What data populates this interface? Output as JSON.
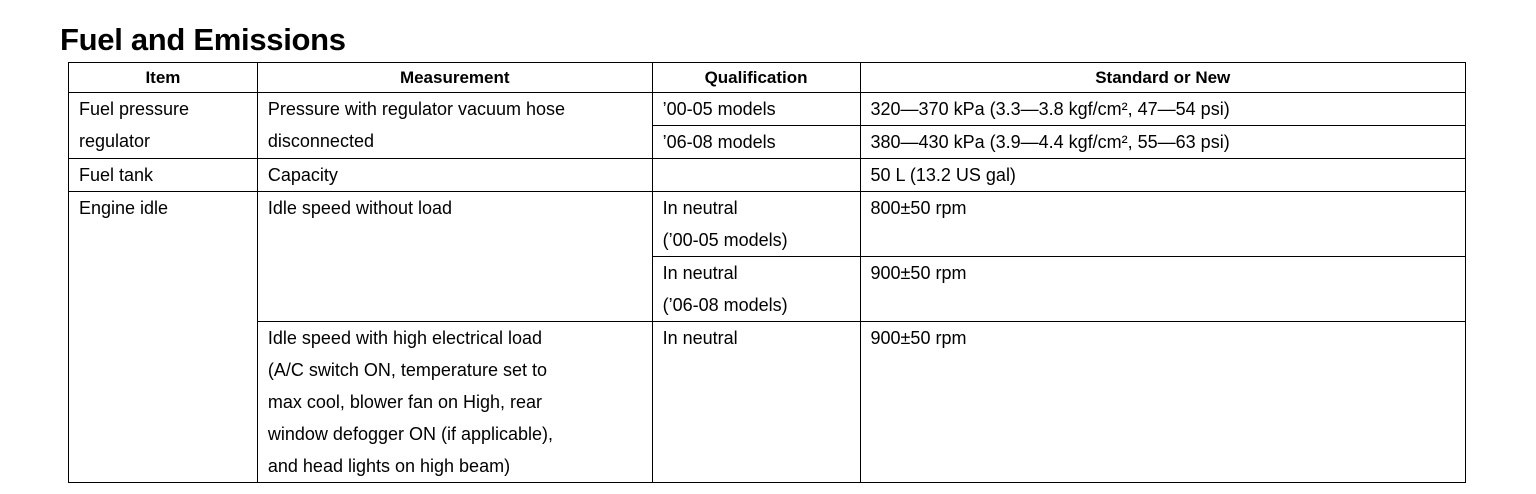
{
  "title": "Fuel and Emissions",
  "headers": [
    "Item",
    "Measurement",
    "Qualification",
    "Standard or New"
  ],
  "rows": {
    "r1": {
      "item": "Fuel pressure\nregulator",
      "measurement": "Pressure with regulator vacuum hose\ndisconnected",
      "qual": "’00-05 models",
      "std": "320—370 kPa (3.3—3.8 kgf/cm², 47—54 psi)"
    },
    "r2": {
      "qual": "’06-08 models",
      "std": "380—430 kPa (3.9—4.4 kgf/cm², 55—63 psi)"
    },
    "r3": {
      "item": "Fuel tank",
      "measurement": "Capacity",
      "qual": "",
      "std": "50 L (13.2 US gal)"
    },
    "r4": {
      "item": "Engine idle",
      "measurement": "Idle speed without load",
      "qual": "In neutral\n(’00-05 models)",
      "std": "800±50 rpm"
    },
    "r5": {
      "qual": "In neutral\n(’06-08 models)",
      "std": "900±50 rpm"
    },
    "r6": {
      "measurement": "Idle speed with high electrical load\n(A/C switch ON, temperature set to\nmax cool, blower fan on High, rear\nwindow defogger ON (if applicable),\nand head lights on high beam)",
      "qual": "In neutral",
      "std": "900±50 rpm"
    }
  }
}
